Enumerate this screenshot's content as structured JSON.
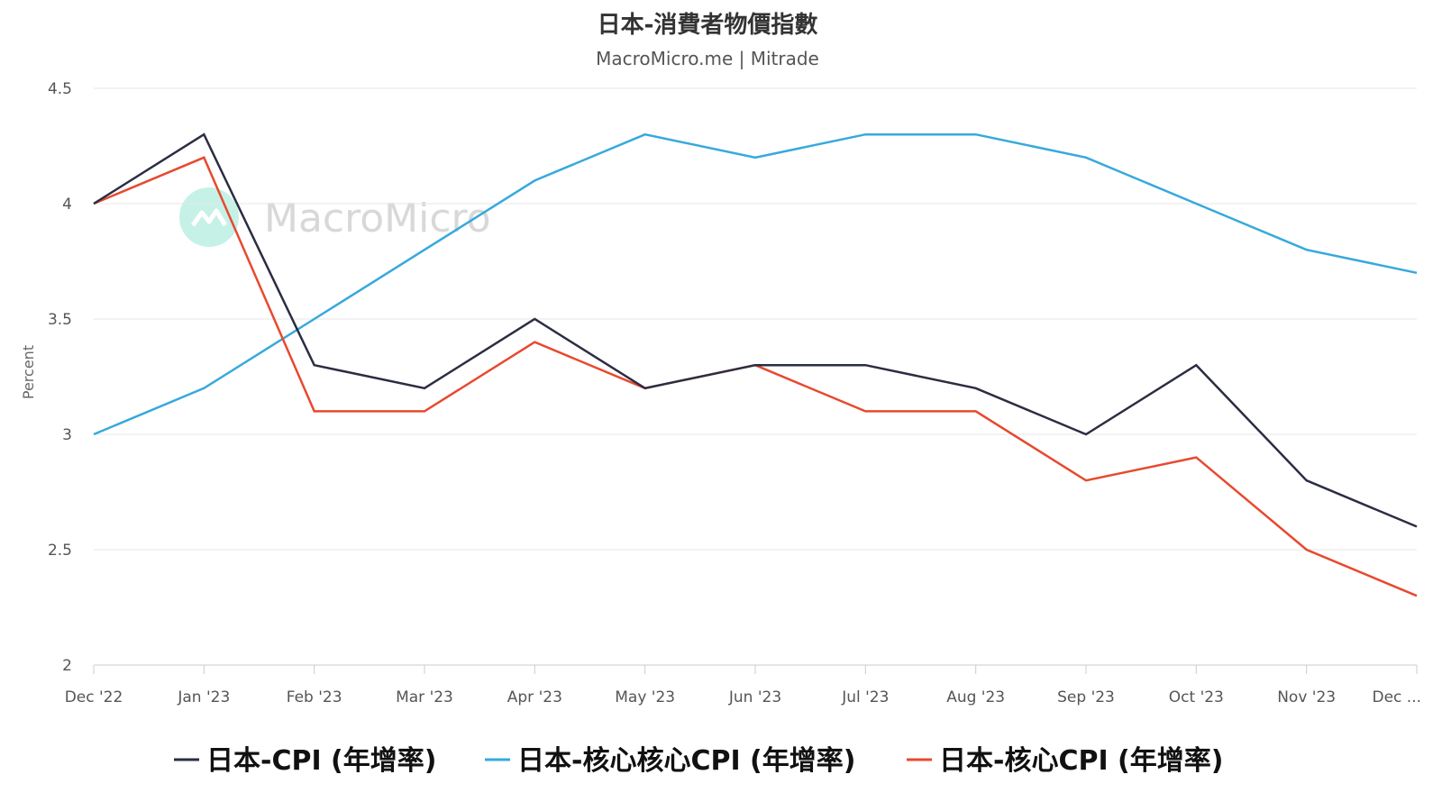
{
  "chart_data": {
    "type": "line",
    "title": "日本-消費者物價指數",
    "subtitle": "MacroMicro.me | Mitrade",
    "watermark": "MacroMicro",
    "ylabel": "Percent",
    "xlabel": "",
    "ylim": [
      2,
      4.5
    ],
    "yticks": [
      "4.5",
      "4",
      "3.5",
      "3",
      "2.5",
      "2"
    ],
    "categories": [
      "Dec '22",
      "Jan '23",
      "Feb '23",
      "Mar '23",
      "Apr '23",
      "May '23",
      "Jun '23",
      "Jul '23",
      "Aug '23",
      "Sep '23",
      "Oct '23",
      "Nov '23",
      "Dec ..."
    ],
    "grid": true,
    "legend_position": "bottom",
    "series": [
      {
        "name": "日本-CPI (年增率)",
        "color": "#2b2d42",
        "values": [
          4.0,
          4.3,
          3.3,
          3.2,
          3.5,
          3.2,
          3.3,
          3.3,
          3.2,
          3.0,
          3.3,
          2.8,
          2.6
        ]
      },
      {
        "name": "日本-核心核心CPI (年增率)",
        "color": "#36a9dd",
        "values": [
          3.0,
          3.2,
          3.5,
          3.8,
          4.1,
          4.3,
          4.2,
          4.3,
          4.3,
          4.2,
          4.0,
          3.8,
          3.7
        ]
      },
      {
        "name": "日本-核心CPI (年增率)",
        "color": "#e8492f",
        "values": [
          4.0,
          4.2,
          3.1,
          3.1,
          3.4,
          3.2,
          3.3,
          3.1,
          3.1,
          2.8,
          2.9,
          2.5,
          2.3
        ]
      }
    ]
  }
}
